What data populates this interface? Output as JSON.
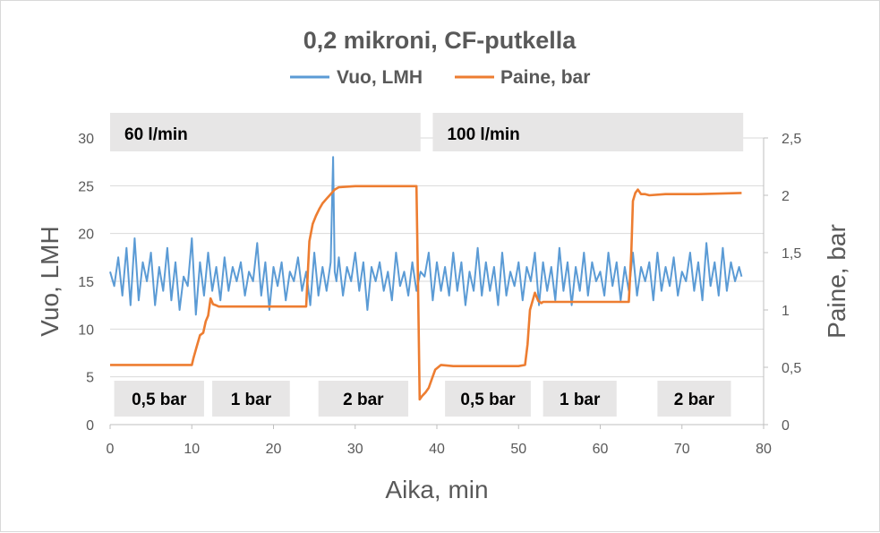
{
  "chart_data": {
    "type": "line",
    "title": "0,2 mikroni, CF-putkella",
    "xlabel": "Aika, min",
    "ylabel": "Vuo, LMH",
    "y2label": "Paine, bar",
    "xlim": [
      0,
      80
    ],
    "ylim": [
      0,
      30
    ],
    "y2lim": [
      0,
      2.5
    ],
    "xticks": [
      "0",
      "10",
      "20",
      "30",
      "40",
      "50",
      "60",
      "70",
      "80"
    ],
    "yticks": [
      "0",
      "5",
      "10",
      "15",
      "20",
      "25",
      "30"
    ],
    "y2ticks": [
      "0",
      "0,5",
      "1",
      "1,5",
      "2",
      "2,5"
    ],
    "grid": "horizontal",
    "legend_position": "top",
    "series": [
      {
        "name": "Vuo, LMH",
        "axis": "left",
        "color": "#5b9bd5",
        "x": [
          0,
          0.5,
          1,
          1.5,
          2,
          2.5,
          3,
          3.5,
          4,
          4.5,
          5,
          5.5,
          6,
          6.5,
          7,
          7.5,
          8,
          8.5,
          9,
          9.5,
          10,
          10.5,
          11,
          11.5,
          12,
          12.5,
          13,
          13.5,
          14,
          14.5,
          15,
          15.5,
          16,
          16.5,
          17,
          17.5,
          18,
          18.5,
          19,
          19.5,
          20,
          20.5,
          21,
          21.5,
          22,
          22.5,
          23,
          23.5,
          24,
          24.5,
          25,
          25.5,
          26,
          26.5,
          27,
          27.3,
          27.5,
          27.7,
          28,
          28.5,
          29,
          29.5,
          30,
          30.5,
          31,
          31.5,
          32,
          32.5,
          33,
          33.5,
          34,
          34.5,
          35,
          35.5,
          36,
          36.5,
          37,
          37.5,
          38,
          38.5,
          39,
          39.5,
          40,
          40.5,
          41,
          41.5,
          42,
          42.5,
          43,
          43.5,
          44,
          44.5,
          45,
          45.5,
          46,
          46.5,
          47,
          47.5,
          48,
          48.5,
          49,
          49.5,
          50,
          50.5,
          51,
          51.5,
          52,
          52.5,
          53,
          53.5,
          54,
          54.5,
          55,
          55.5,
          56,
          56.5,
          57,
          57.5,
          58,
          58.5,
          59,
          59.5,
          60,
          60.5,
          61,
          61.5,
          62,
          62.5,
          63,
          63.5,
          64,
          64.5,
          65,
          65.5,
          66,
          66.5,
          67,
          67.5,
          68,
          68.5,
          69,
          69.5,
          70,
          70.5,
          71,
          71.5,
          72,
          72.5,
          73,
          73.5,
          74,
          74.5,
          75,
          75.5,
          76,
          76.5,
          77,
          77.3
        ],
        "y": [
          16,
          14.5,
          17.5,
          13.5,
          18.5,
          12.5,
          19.5,
          13,
          17,
          15,
          18,
          12.5,
          16.5,
          14,
          18.5,
          13,
          17,
          12,
          15.5,
          14.5,
          19.5,
          11.5,
          17,
          13.5,
          18,
          14,
          16.5,
          13,
          17.5,
          14,
          16.5,
          15,
          17,
          13.5,
          16,
          15,
          19,
          13.5,
          17,
          12,
          16.5,
          14.5,
          17,
          13,
          16,
          15,
          17.5,
          14,
          16,
          12.5,
          18,
          13.5,
          16.5,
          14,
          17,
          28,
          16,
          15,
          17.5,
          13.5,
          16.5,
          15,
          18,
          14,
          17,
          12,
          16.5,
          15,
          17,
          14,
          16,
          13,
          18,
          14.5,
          16,
          13.5,
          17,
          14,
          16,
          15.5,
          18,
          13,
          17,
          14,
          16.5,
          13.5,
          18,
          14,
          17,
          12.5,
          16,
          14,
          18.5,
          13.5,
          17,
          14,
          16.5,
          12.5,
          18,
          13.5,
          16,
          14.5,
          17,
          13,
          16.5,
          15,
          18,
          12.5,
          17,
          14,
          16.5,
          13,
          18.5,
          14,
          17,
          12.5,
          16.5,
          14,
          18,
          13.5,
          17,
          15,
          16,
          13.5,
          18,
          14.5,
          17,
          13,
          16.5,
          14,
          18,
          13.5,
          16.5,
          15,
          17,
          13,
          18,
          14,
          16.5,
          14.5,
          17.5,
          13.5,
          16,
          15,
          18,
          14,
          17,
          13,
          19,
          14.5,
          17,
          13.5,
          18.5,
          14,
          17,
          15,
          16.5,
          15.5
        ]
      },
      {
        "name": "Paine, bar",
        "axis": "right",
        "color": "#ed7d31",
        "x": [
          0,
          10,
          10.2,
          10.6,
          11,
          11.4,
          11.7,
          12,
          12.3,
          12.6,
          13,
          13.3,
          24,
          24.4,
          24.8,
          25.2,
          25.6,
          26,
          26.5,
          27,
          27.5,
          28,
          30,
          32,
          34,
          36,
          37.5,
          37.7,
          37.9,
          38.2,
          38.6,
          39,
          39.4,
          39.8,
          40.5,
          42,
          50,
          50.8,
          51.1,
          51.4,
          52,
          52.4,
          52.8,
          53,
          53.3,
          56,
          60,
          63.5,
          63.8,
          64,
          64.3,
          64.6,
          65,
          65.5,
          66,
          68,
          72,
          77.3
        ],
        "y": [
          0.52,
          0.52,
          0.58,
          0.68,
          0.78,
          0.8,
          0.9,
          0.95,
          1.1,
          1.05,
          1.04,
          1.03,
          1.03,
          1.6,
          1.75,
          1.82,
          1.88,
          1.93,
          1.97,
          2.01,
          2.05,
          2.07,
          2.08,
          2.08,
          2.08,
          2.08,
          2.08,
          1.2,
          0.22,
          0.25,
          0.28,
          0.32,
          0.4,
          0.48,
          0.52,
          0.51,
          0.51,
          0.52,
          0.7,
          1.0,
          1.15,
          1.08,
          1.06,
          1.07,
          1.07,
          1.07,
          1.07,
          1.07,
          1.5,
          1.95,
          2.02,
          2.05,
          2.01,
          2.01,
          2.0,
          2.01,
          2.01,
          2.02
        ]
      }
    ],
    "annotations": {
      "flow_rates": [
        {
          "label": "60 l/min",
          "x_start": 0,
          "x_end": 38
        },
        {
          "label": "100 l/min",
          "x_start": 39.5,
          "x_end": 77.5
        }
      ],
      "pressures": [
        {
          "label": "0,5 bar",
          "x_start": 0.5,
          "x_end": 11.5
        },
        {
          "label": "1  bar",
          "x_start": 12.5,
          "x_end": 22
        },
        {
          "label": "2 bar",
          "x_start": 25.5,
          "x_end": 36.5
        },
        {
          "label": "0,5 bar",
          "x_start": 41,
          "x_end": 51.5
        },
        {
          "label": "1  bar",
          "x_start": 53,
          "x_end": 62
        },
        {
          "label": "2 bar",
          "x_start": 67,
          "x_end": 76
        }
      ]
    }
  }
}
